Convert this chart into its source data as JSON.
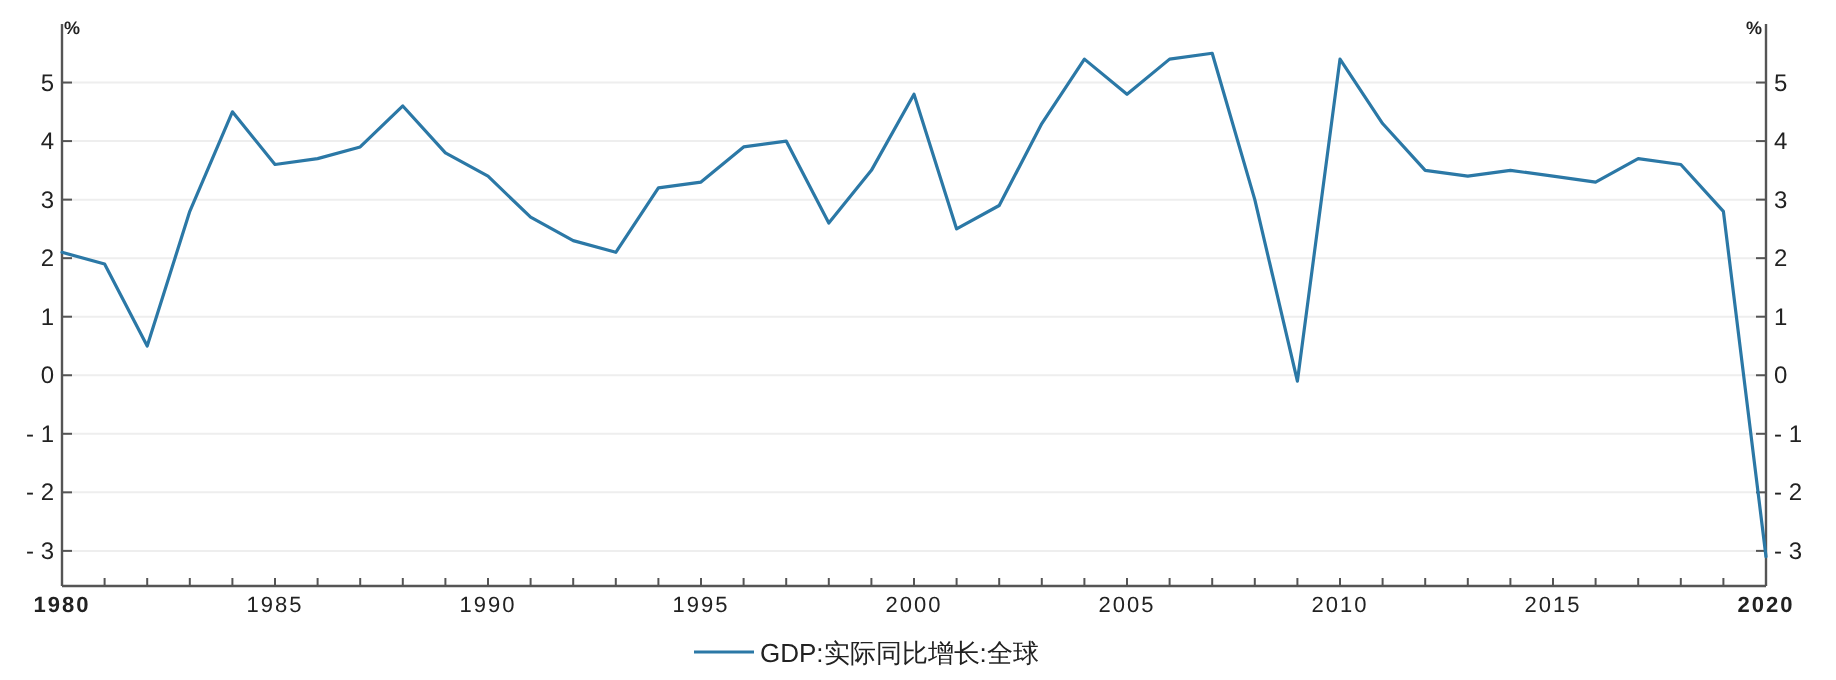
{
  "chart_data": {
    "type": "line",
    "ylabel": "%",
    "y2label": "%",
    "x": [
      1980,
      1981,
      1982,
      1983,
      1984,
      1985,
      1986,
      1987,
      1988,
      1989,
      1990,
      1991,
      1992,
      1993,
      1994,
      1995,
      1996,
      1997,
      1998,
      1999,
      2000,
      2001,
      2002,
      2003,
      2004,
      2005,
      2006,
      2007,
      2008,
      2009,
      2010,
      2011,
      2012,
      2013,
      2014,
      2015,
      2016,
      2017,
      2018,
      2019,
      2020
    ],
    "series": [
      {
        "name": "GDP:实际同比增长:全球",
        "color": "#2b78a6",
        "values": [
          2.1,
          1.9,
          0.5,
          2.8,
          4.5,
          3.6,
          3.7,
          3.9,
          4.6,
          3.8,
          3.4,
          2.7,
          2.3,
          2.1,
          3.2,
          3.3,
          3.9,
          4.0,
          2.6,
          3.5,
          4.8,
          2.5,
          2.9,
          4.3,
          5.4,
          4.8,
          5.4,
          5.5,
          3.0,
          -0.1,
          5.4,
          4.3,
          3.5,
          3.4,
          3.5,
          3.4,
          3.3,
          3.7,
          3.6,
          2.8,
          -3.1
        ]
      }
    ],
    "xlim": [
      1980,
      2020
    ],
    "xticks": [
      1980,
      {
        "value": 1981,
        "label": null
      },
      {
        "value": 1982,
        "label": null
      },
      {
        "value": 1983,
        "label": null
      },
      {
        "value": 1984,
        "label": null
      },
      1985,
      {
        "value": 1986,
        "label": null
      },
      {
        "value": 1987,
        "label": null
      },
      {
        "value": 1988,
        "label": null
      },
      {
        "value": 1989,
        "label": null
      },
      1990,
      {
        "value": 1991,
        "label": null
      },
      {
        "value": 1992,
        "label": null
      },
      {
        "value": 1993,
        "label": null
      },
      {
        "value": 1994,
        "label": null
      },
      1995,
      {
        "value": 1996,
        "label": null
      },
      {
        "value": 1997,
        "label": null
      },
      {
        "value": 1998,
        "label": null
      },
      {
        "value": 1999,
        "label": null
      },
      2000,
      {
        "value": 2001,
        "label": null
      },
      {
        "value": 2002,
        "label": null
      },
      {
        "value": 2003,
        "label": null
      },
      {
        "value": 2004,
        "label": null
      },
      2005,
      {
        "value": 2006,
        "label": null
      },
      {
        "value": 2007,
        "label": null
      },
      {
        "value": 2008,
        "label": null
      },
      {
        "value": 2009,
        "label": null
      },
      2010,
      {
        "value": 2011,
        "label": null
      },
      {
        "value": 2012,
        "label": null
      },
      {
        "value": 2013,
        "label": null
      },
      {
        "value": 2014,
        "label": null
      },
      2015,
      {
        "value": 2016,
        "label": null
      },
      {
        "value": 2017,
        "label": null
      },
      {
        "value": 2018,
        "label": null
      },
      {
        "value": 2019,
        "label": null
      },
      2020
    ],
    "ylim": [
      -3.6,
      6
    ],
    "yticks": [
      -3,
      -2,
      -1,
      0,
      1,
      2,
      3,
      4,
      5
    ],
    "y2lim": [
      -3.6,
      6
    ],
    "y2ticks": [
      -3,
      -2,
      -1,
      0,
      1,
      2,
      3,
      4,
      5
    ],
    "grid": "y",
    "legend": "bottom",
    "line_style": "solid"
  }
}
